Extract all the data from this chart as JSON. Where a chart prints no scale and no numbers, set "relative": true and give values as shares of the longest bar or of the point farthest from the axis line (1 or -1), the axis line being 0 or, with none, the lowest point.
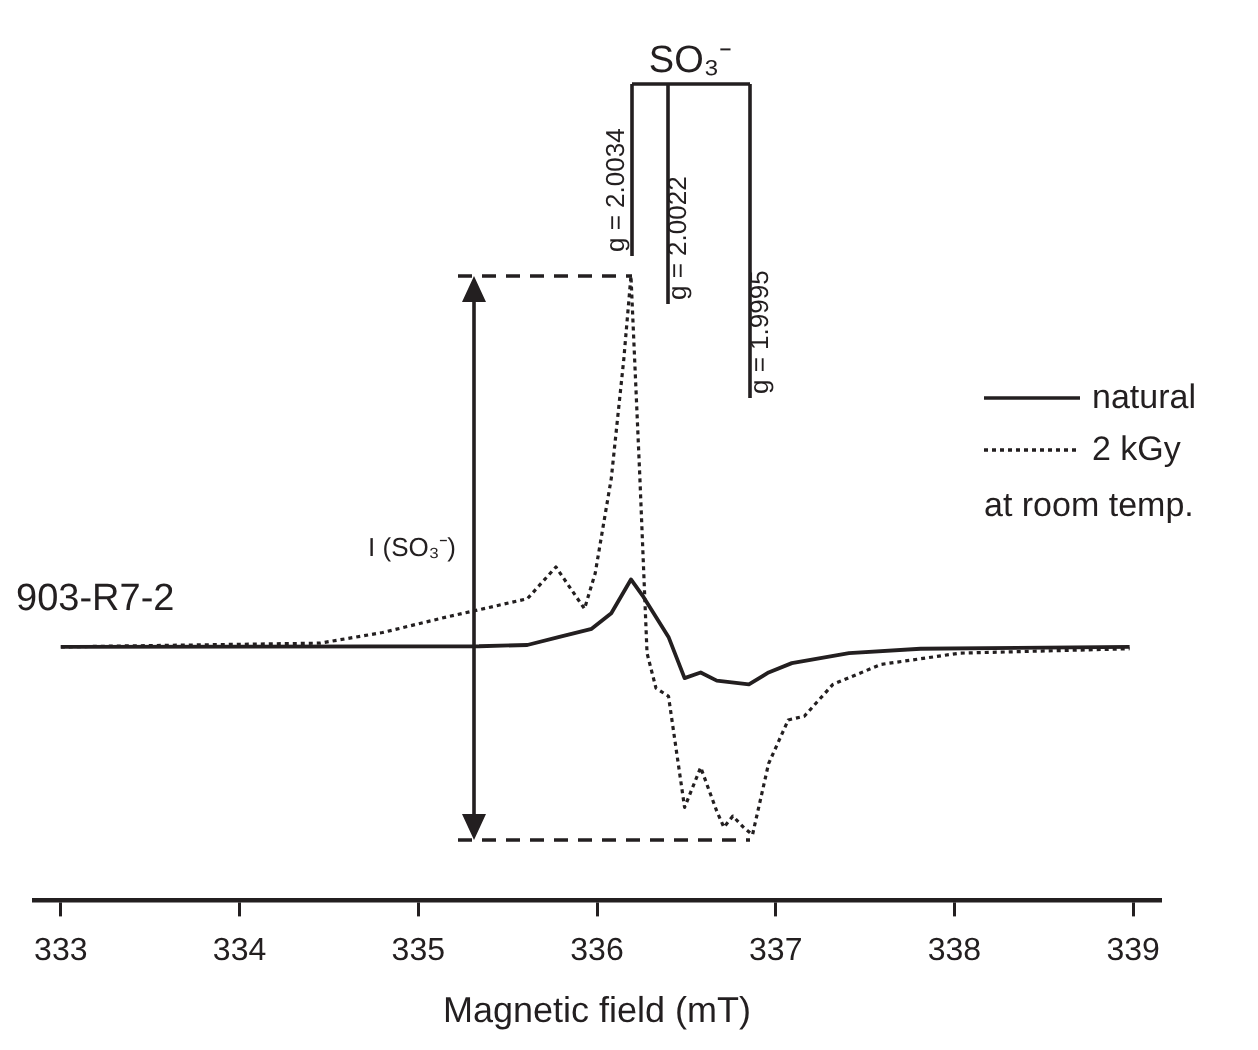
{
  "chart_data": {
    "type": "line",
    "relative": true,
    "xlabel": "Magnetic field (mT)",
    "xlim": [
      332.85,
      339.15
    ],
    "xticks": [
      333,
      334,
      335,
      336,
      337,
      338,
      339
    ],
    "grid": false,
    "legend": "top right",
    "marker": "none",
    "tick_labels": "x",
    "series": [
      {
        "name": "natural",
        "color": "#231f20",
        "line_style": "solid",
        "x": [
          333.0,
          335.34,
          335.61,
          335.79,
          335.97,
          336.08,
          336.19,
          336.26,
          336.33,
          336.4,
          336.49,
          336.58,
          336.67,
          336.85,
          336.96,
          337.09,
          337.41,
          337.81,
          338.98
        ],
        "values": [
          0.406,
          0.407,
          0.409,
          0.422,
          0.435,
          0.46,
          0.514,
          0.486,
          0.454,
          0.422,
          0.356,
          0.365,
          0.352,
          0.346,
          0.365,
          0.38,
          0.396,
          0.403,
          0.406
        ]
      },
      {
        "name": "2 kGy",
        "color": "#231f20",
        "line_style": "dotted",
        "x": [
          333.0,
          334.45,
          334.8,
          335.16,
          335.61,
          335.77,
          335.93,
          335.99,
          336.08,
          336.15,
          336.19,
          336.24,
          336.28,
          336.33,
          336.4,
          336.49,
          336.58,
          336.67,
          336.71,
          336.76,
          336.82,
          336.87,
          336.96,
          337.07,
          337.16,
          337.32,
          337.59,
          338.03,
          338.98
        ],
        "values": [
          0.406,
          0.412,
          0.429,
          0.454,
          0.483,
          0.534,
          0.467,
          0.524,
          0.676,
          0.867,
          1.0,
          0.676,
          0.396,
          0.34,
          0.327,
          0.149,
          0.213,
          0.143,
          0.117,
          0.135,
          0.117,
          0.105,
          0.219,
          0.289,
          0.295,
          0.346,
          0.378,
          0.396,
          0.403
        ]
      }
    ],
    "annotations": [
      "SO₃⁻",
      "g = 2.0034",
      "g = 2.0022",
      "g = 1.9995",
      "I (SO₃⁻)",
      "903-R7-2",
      "at room temp."
    ]
  }
}
